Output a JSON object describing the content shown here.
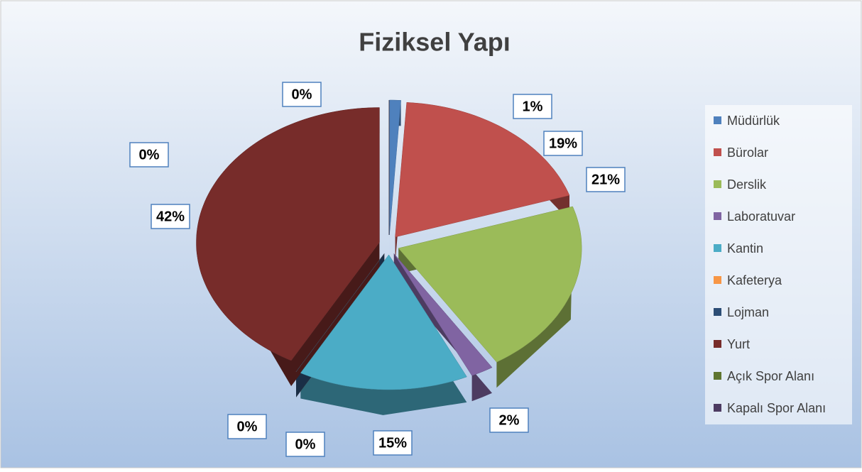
{
  "chart_data": {
    "type": "pie",
    "title": "Fiziksel Yapı",
    "categories": [
      "Müdürlük",
      "Bürolar",
      "Derslik",
      "Laboratuvar",
      "Kantin",
      "Kafeterya",
      "Lojman",
      "Yurt",
      "Açık Spor Alanı",
      "Kapalı Spor Alanı"
    ],
    "values": [
      1,
      19,
      21,
      2,
      15,
      0,
      0,
      42,
      0,
      0
    ],
    "value_labels": [
      "1%",
      "19%",
      "21%",
      "2%",
      "15%",
      "0%",
      "0%",
      "42%",
      "0%",
      "0%"
    ],
    "colors": [
      "#4f81bd",
      "#c0504d",
      "#9bbb59",
      "#8064a2",
      "#4bacc6",
      "#f79646",
      "#2c4d75",
      "#772c2a",
      "#5f7530",
      "#4d3b62"
    ],
    "legend": "right"
  }
}
